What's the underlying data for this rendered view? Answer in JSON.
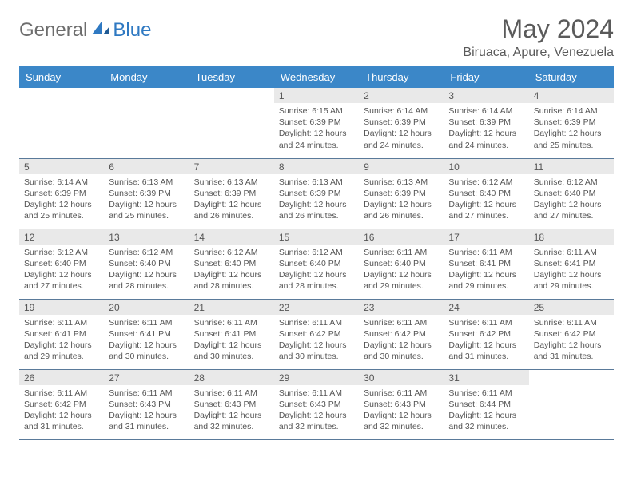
{
  "brand": {
    "general": "General",
    "blue": "Blue"
  },
  "title": "May 2024",
  "location": "Biruaca, Apure, Venezuela",
  "colors": {
    "header_bg": "#3b87c8",
    "header_text": "#ffffff",
    "daynum_bg": "#e9e9e9",
    "text": "#555555",
    "rule": "#5a7a9a",
    "logo_gray": "#6d6d6d",
    "logo_blue": "#2f79c2"
  },
  "weekdays": [
    "Sunday",
    "Monday",
    "Tuesday",
    "Wednesday",
    "Thursday",
    "Friday",
    "Saturday"
  ],
  "weeks": [
    [
      null,
      null,
      null,
      {
        "n": "1",
        "sr": "6:15 AM",
        "ss": "6:39 PM",
        "dh": "12",
        "dm": "24"
      },
      {
        "n": "2",
        "sr": "6:14 AM",
        "ss": "6:39 PM",
        "dh": "12",
        "dm": "24"
      },
      {
        "n": "3",
        "sr": "6:14 AM",
        "ss": "6:39 PM",
        "dh": "12",
        "dm": "24"
      },
      {
        "n": "4",
        "sr": "6:14 AM",
        "ss": "6:39 PM",
        "dh": "12",
        "dm": "25"
      }
    ],
    [
      {
        "n": "5",
        "sr": "6:14 AM",
        "ss": "6:39 PM",
        "dh": "12",
        "dm": "25"
      },
      {
        "n": "6",
        "sr": "6:13 AM",
        "ss": "6:39 PM",
        "dh": "12",
        "dm": "25"
      },
      {
        "n": "7",
        "sr": "6:13 AM",
        "ss": "6:39 PM",
        "dh": "12",
        "dm": "26"
      },
      {
        "n": "8",
        "sr": "6:13 AM",
        "ss": "6:39 PM",
        "dh": "12",
        "dm": "26"
      },
      {
        "n": "9",
        "sr": "6:13 AM",
        "ss": "6:39 PM",
        "dh": "12",
        "dm": "26"
      },
      {
        "n": "10",
        "sr": "6:12 AM",
        "ss": "6:40 PM",
        "dh": "12",
        "dm": "27"
      },
      {
        "n": "11",
        "sr": "6:12 AM",
        "ss": "6:40 PM",
        "dh": "12",
        "dm": "27"
      }
    ],
    [
      {
        "n": "12",
        "sr": "6:12 AM",
        "ss": "6:40 PM",
        "dh": "12",
        "dm": "27"
      },
      {
        "n": "13",
        "sr": "6:12 AM",
        "ss": "6:40 PM",
        "dh": "12",
        "dm": "28"
      },
      {
        "n": "14",
        "sr": "6:12 AM",
        "ss": "6:40 PM",
        "dh": "12",
        "dm": "28"
      },
      {
        "n": "15",
        "sr": "6:12 AM",
        "ss": "6:40 PM",
        "dh": "12",
        "dm": "28"
      },
      {
        "n": "16",
        "sr": "6:11 AM",
        "ss": "6:40 PM",
        "dh": "12",
        "dm": "29"
      },
      {
        "n": "17",
        "sr": "6:11 AM",
        "ss": "6:41 PM",
        "dh": "12",
        "dm": "29"
      },
      {
        "n": "18",
        "sr": "6:11 AM",
        "ss": "6:41 PM",
        "dh": "12",
        "dm": "29"
      }
    ],
    [
      {
        "n": "19",
        "sr": "6:11 AM",
        "ss": "6:41 PM",
        "dh": "12",
        "dm": "29"
      },
      {
        "n": "20",
        "sr": "6:11 AM",
        "ss": "6:41 PM",
        "dh": "12",
        "dm": "30"
      },
      {
        "n": "21",
        "sr": "6:11 AM",
        "ss": "6:41 PM",
        "dh": "12",
        "dm": "30"
      },
      {
        "n": "22",
        "sr": "6:11 AM",
        "ss": "6:42 PM",
        "dh": "12",
        "dm": "30"
      },
      {
        "n": "23",
        "sr": "6:11 AM",
        "ss": "6:42 PM",
        "dh": "12",
        "dm": "30"
      },
      {
        "n": "24",
        "sr": "6:11 AM",
        "ss": "6:42 PM",
        "dh": "12",
        "dm": "31"
      },
      {
        "n": "25",
        "sr": "6:11 AM",
        "ss": "6:42 PM",
        "dh": "12",
        "dm": "31"
      }
    ],
    [
      {
        "n": "26",
        "sr": "6:11 AM",
        "ss": "6:42 PM",
        "dh": "12",
        "dm": "31"
      },
      {
        "n": "27",
        "sr": "6:11 AM",
        "ss": "6:43 PM",
        "dh": "12",
        "dm": "31"
      },
      {
        "n": "28",
        "sr": "6:11 AM",
        "ss": "6:43 PM",
        "dh": "12",
        "dm": "32"
      },
      {
        "n": "29",
        "sr": "6:11 AM",
        "ss": "6:43 PM",
        "dh": "12",
        "dm": "32"
      },
      {
        "n": "30",
        "sr": "6:11 AM",
        "ss": "6:43 PM",
        "dh": "12",
        "dm": "32"
      },
      {
        "n": "31",
        "sr": "6:11 AM",
        "ss": "6:44 PM",
        "dh": "12",
        "dm": "32"
      },
      null
    ]
  ],
  "labels": {
    "sunrise": "Sunrise:",
    "sunset": "Sunset:",
    "daylight_pre": "Daylight:",
    "hours_word": "hours",
    "and_word": "and",
    "minutes_word": "minutes."
  }
}
